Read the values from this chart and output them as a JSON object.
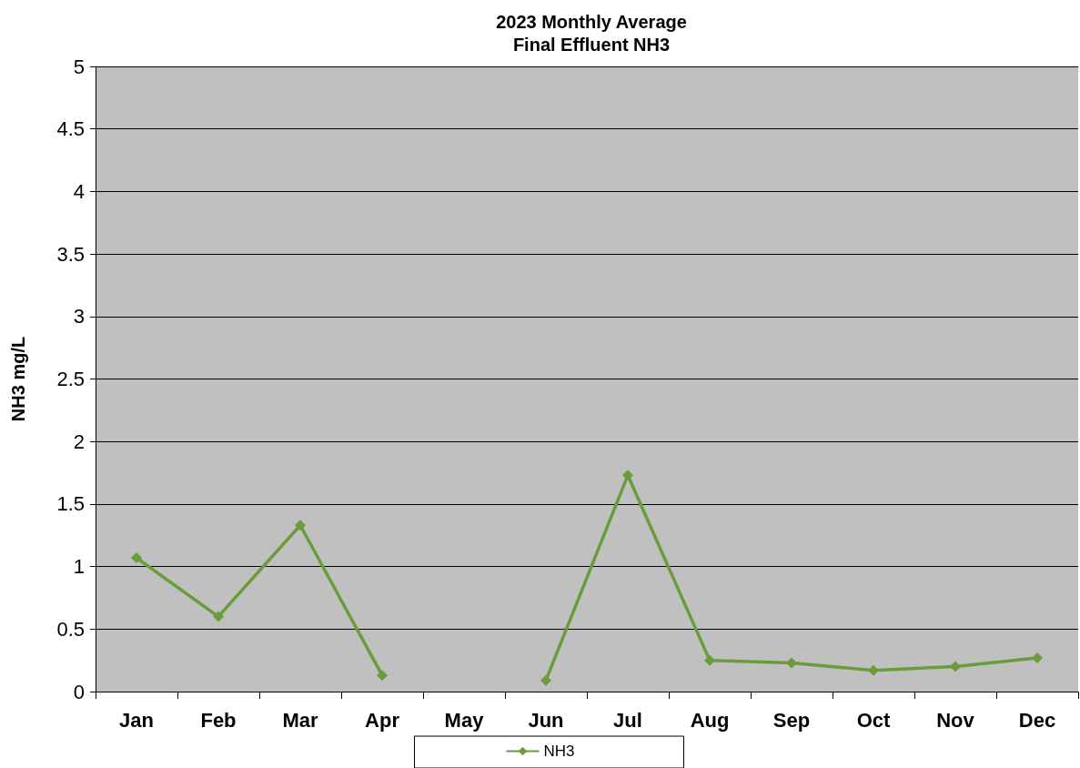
{
  "chart_data": {
    "type": "line",
    "title": "2023 Monthly Average\nFinal Effluent NH3",
    "ylabel": "NH3 mg/L",
    "categories": [
      "Jan",
      "Feb",
      "Mar",
      "Apr",
      "May",
      "Jun",
      "Jul",
      "Aug",
      "Sep",
      "Oct",
      "Nov",
      "Dec"
    ],
    "series": [
      {
        "name": "NH3",
        "color": "#6b9c3c",
        "values": [
          1.07,
          0.6,
          1.33,
          0.13,
          null,
          0.09,
          1.73,
          0.25,
          0.23,
          0.17,
          0.2,
          0.27
        ]
      }
    ],
    "ylim": [
      0,
      5
    ],
    "yticks": [
      0,
      0.5,
      1,
      1.5,
      2,
      2.5,
      3,
      3.5,
      4,
      4.5,
      5
    ],
    "grid": "y",
    "legend": "bottom",
    "marker": "diamond",
    "line_style": "solid"
  }
}
